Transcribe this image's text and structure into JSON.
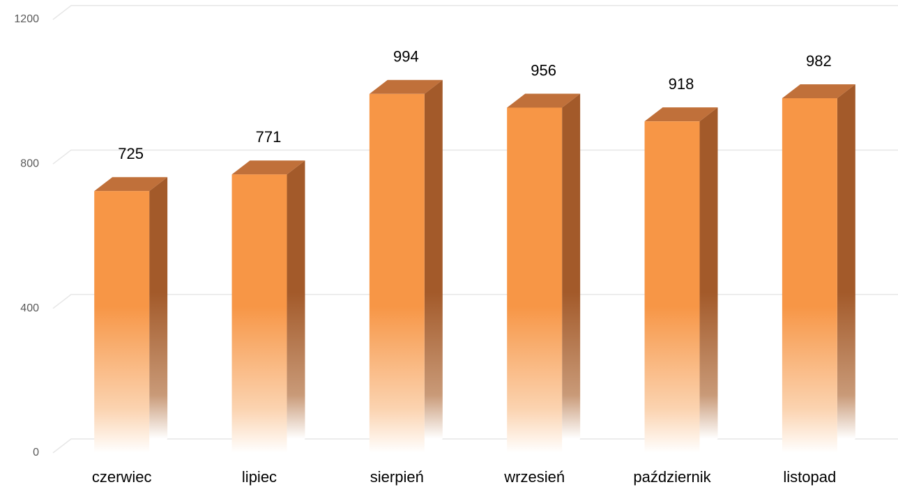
{
  "chart_data": {
    "type": "bar3d",
    "categories": [
      "czerwiec",
      "lipiec",
      "sierpień",
      "wrzesień",
      "październik",
      "listopad"
    ],
    "values": [
      725,
      771,
      994,
      956,
      918,
      982
    ],
    "color": "#f79646",
    "ylim": [
      0,
      1200
    ],
    "yticks": [
      0,
      400,
      800,
      1200
    ],
    "grid": true
  }
}
